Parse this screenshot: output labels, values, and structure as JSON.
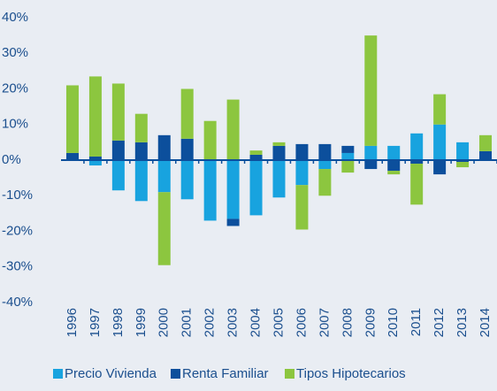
{
  "chart_data": {
    "type": "stacked-bar",
    "categories": [
      "1996",
      "1997",
      "1998",
      "1999",
      "2000",
      "2001",
      "2002",
      "2003",
      "2004",
      "2005",
      "2006",
      "2007",
      "2008",
      "2009",
      "2010",
      "2011",
      "2012",
      "2013",
      "2014"
    ],
    "series": [
      {
        "name": "Precio Vivienda",
        "color": "#18a3df",
        "values": [
          0,
          -1.5,
          -8.5,
          -11.5,
          -9,
          -11,
          -17,
          -16.5,
          -15.5,
          -10.5,
          -7,
          -2.5,
          2,
          4,
          4,
          7.5,
          10,
          5,
          0
        ]
      },
      {
        "name": "Renta Familiar",
        "color": "#0c4f9c",
        "values": [
          2,
          1,
          5.5,
          5,
          7,
          6,
          0,
          -2,
          1.5,
          4,
          4.5,
          4.5,
          2,
          -2.5,
          -3,
          -1,
          -4,
          -0.5,
          2.5
        ]
      },
      {
        "name": "Tipos Hipotecarios",
        "color": "#8cc63f",
        "values": [
          19,
          22.5,
          16,
          8,
          -20.5,
          14,
          11,
          17,
          1.2,
          1,
          -12.5,
          -7.5,
          -3.5,
          31,
          -1,
          -11.5,
          8.5,
          -1.5,
          4.5
        ]
      }
    ],
    "ylim": [
      -40,
      40
    ],
    "yticks": [
      {
        "value": -40,
        "label": "-40%"
      },
      {
        "value": -30,
        "label": "-30%"
      },
      {
        "value": -20,
        "label": "-20%"
      },
      {
        "value": -10,
        "label": "-10%"
      },
      {
        "value": 0,
        "label": "0%"
      },
      {
        "value": 10,
        "label": "10%"
      },
      {
        "value": 20,
        "label": "20%"
      },
      {
        "value": 30,
        "label": "30%"
      },
      {
        "value": 40,
        "label": "40%"
      }
    ],
    "grid": false,
    "legend": "bottom"
  }
}
